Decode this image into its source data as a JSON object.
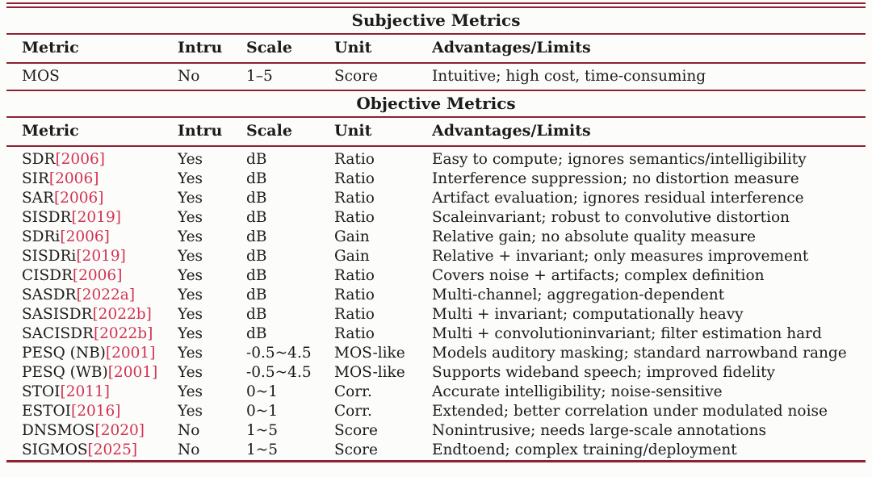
{
  "colors": {
    "rule": "#8e2132",
    "citation_link": "#d23253",
    "text": "#1b1b1b",
    "background": "#fcfdfa"
  },
  "sections": {
    "subjective": {
      "title": "Subjective Metrics",
      "headers": [
        "Metric",
        "Intru",
        "Scale",
        "Unit",
        "Advantages/Limits"
      ],
      "rows": [
        {
          "name": "MOS",
          "cite": "",
          "intru": "No",
          "scale": "1–5",
          "unit": "Score",
          "adv": "Intuitive; high cost, time-consuming"
        }
      ]
    },
    "objective": {
      "title": "Objective Metrics",
      "headers": [
        "Metric",
        "Intru",
        "Scale",
        "Unit",
        "Advantages/Limits"
      ],
      "rows": [
        {
          "name": "SDR",
          "cite": "[2006]",
          "intru": "Yes",
          "scale": "dB",
          "unit": "Ratio",
          "adv": "Easy to compute; ignores semantics/intelligibility"
        },
        {
          "name": "SIR",
          "cite": "[2006]",
          "intru": "Yes",
          "scale": "dB",
          "unit": "Ratio",
          "adv": "Interference suppression; no distortion measure"
        },
        {
          "name": "SAR",
          "cite": "[2006]",
          "intru": "Yes",
          "scale": "dB",
          "unit": "Ratio",
          "adv": "Artifact evaluation; ignores residual interference"
        },
        {
          "name": "SISDR",
          "cite": "[2019]",
          "intru": "Yes",
          "scale": "dB",
          "unit": "Ratio",
          "adv": "Scaleinvariant; robust to convolutive distortion"
        },
        {
          "name": "SDRi",
          "cite": "[2006]",
          "intru": "Yes",
          "scale": "dB",
          "unit": "Gain",
          "adv": "Relative gain; no absolute quality measure"
        },
        {
          "name": "SISDRi",
          "cite": "[2019]",
          "intru": "Yes",
          "scale": "dB",
          "unit": "Gain",
          "adv": "Relative + invariant; only measures improvement"
        },
        {
          "name": "CISDR",
          "cite": "[2006]",
          "intru": "Yes",
          "scale": "dB",
          "unit": "Ratio",
          "adv": "Covers noise + artifacts; complex definition"
        },
        {
          "name": "SASDR",
          "cite": "[2022a]",
          "intru": "Yes",
          "scale": "dB",
          "unit": "Ratio",
          "adv": "Multi-channel; aggregation-dependent"
        },
        {
          "name": "SASISDR",
          "cite": "[2022b]",
          "intru": "Yes",
          "scale": "dB",
          "unit": "Ratio",
          "adv": "Multi + invariant; computationally heavy"
        },
        {
          "name": "SACISDR",
          "cite": "[2022b]",
          "intru": "Yes",
          "scale": "dB",
          "unit": "Ratio",
          "adv": "Multi + convolutioninvariant; filter estimation hard"
        },
        {
          "name": "PESQ (NB)",
          "cite": "[2001]",
          "intru": "Yes",
          "scale": "-0.5~4.5",
          "unit": "MOS-like",
          "adv": "Models auditory masking; standard narrowband range"
        },
        {
          "name": "PESQ (WB)",
          "cite": "[2001]",
          "intru": "Yes",
          "scale": "-0.5~4.5",
          "unit": "MOS-like",
          "adv": "Supports wideband speech; improved fidelity"
        },
        {
          "name": "STOI",
          "cite": "[2011]",
          "intru": "Yes",
          "scale": "0~1",
          "unit": "Corr.",
          "adv": "Accurate intelligibility; noise-sensitive"
        },
        {
          "name": "ESTOI",
          "cite": "[2016]",
          "intru": "Yes",
          "scale": "0~1",
          "unit": "Corr.",
          "adv": "Extended; better correlation under modulated noise"
        },
        {
          "name": "DNSMOS",
          "cite": "[2020]",
          "intru": "No",
          "scale": "1~5",
          "unit": "Score",
          "adv": "Nonintrusive; needs large-scale annotations"
        },
        {
          "name": "SIGMOS",
          "cite": "[2025]",
          "intru": "No",
          "scale": "1~5",
          "unit": "Score",
          "adv": "Endtoend; complex training/deployment"
        }
      ]
    }
  }
}
